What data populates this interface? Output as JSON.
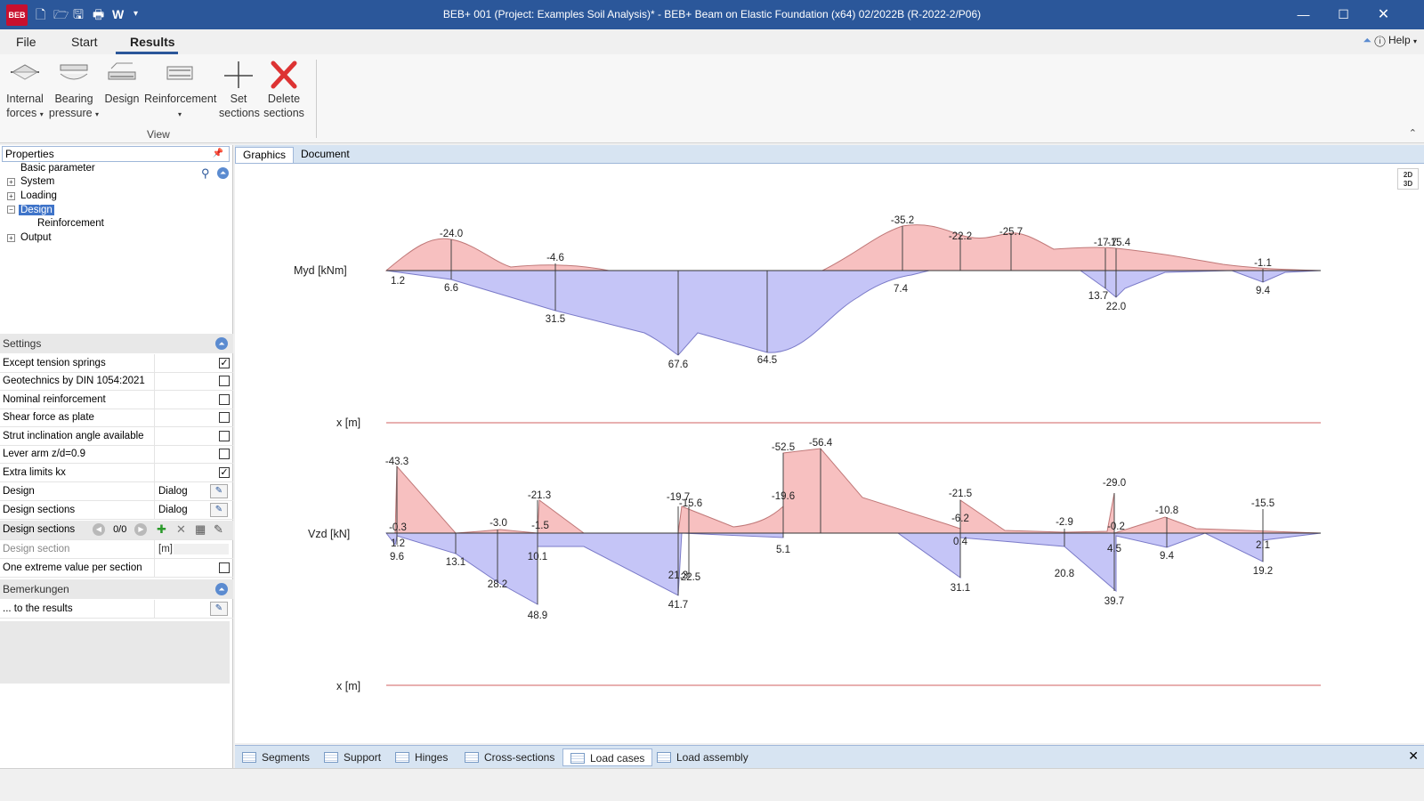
{
  "window": {
    "logo": "BEB",
    "title": "BEB+ 001 (Project: Examples Soil Analysis)* - BEB+ Beam on Elastic Foundation (x64) 02/2022B (R-2022-2/P06)",
    "qat_word": "W"
  },
  "ribbon": {
    "tabs": [
      "File",
      "Start",
      "Results"
    ],
    "help": "Help",
    "buttons": [
      {
        "line1": "Internal",
        "line2": "forces",
        "dropdown": true
      },
      {
        "line1": "Bearing",
        "line2": "pressure",
        "dropdown": true
      },
      {
        "line1": "Design",
        "line2": ""
      },
      {
        "line1": "Reinforcement",
        "line2": "",
        "dropdown": true
      },
      {
        "line1": "Set",
        "line2": "sections"
      },
      {
        "line1": "Delete",
        "line2": "sections"
      }
    ],
    "group_label": "View"
  },
  "properties": {
    "title": "Properties",
    "tree": [
      {
        "label": "Basic parameter"
      },
      {
        "label": "System"
      },
      {
        "label": "Loading"
      },
      {
        "label": "Design"
      },
      {
        "label": "Reinforcement"
      },
      {
        "label": "Output"
      }
    ]
  },
  "settings": {
    "title": "Settings",
    "rows": [
      {
        "label": "Except tension springs",
        "checked": true
      },
      {
        "label": "Geotechnics by DIN 1054:2021",
        "checked": false
      },
      {
        "label": "Nominal reinforcement",
        "checked": false
      },
      {
        "label": "Shear force as plate",
        "checked": false
      },
      {
        "label": "Strut inclination angle available",
        "checked": false
      },
      {
        "label": "Lever arm z/d=0.9",
        "checked": false
      },
      {
        "label": "Extra limits kx",
        "checked": true
      }
    ],
    "design": {
      "label": "Design",
      "value": "Dialog"
    },
    "design_sections": {
      "label": "Design sections",
      "value": "Dialog"
    },
    "design_sections_nav": {
      "label": "Design sections",
      "counter": "0/0"
    },
    "design_section": {
      "label": "Design section",
      "unit": "[m]"
    },
    "one_extreme": {
      "label": "One extreme value per section",
      "checked": false
    }
  },
  "remarks": {
    "title": "Bemerkungen",
    "row_label": "... to the results"
  },
  "main_tabs": [
    "Graphics",
    "Document"
  ],
  "view_toggle": {
    "top": "2D",
    "bottom": "3D"
  },
  "bottom_tabs": [
    "Segments",
    "Support",
    "Hinges",
    "Cross-sections",
    "Load cases",
    "Load assembly"
  ],
  "chart_data": [
    {
      "type": "area",
      "ylabel": "Myd [kNm]",
      "xlabel": "x [m]",
      "colors": {
        "negative": "#f7c0c0",
        "positive": "#c5c5f7",
        "axis_line": "#d06060"
      },
      "labels": [
        {
          "text": "-24.0",
          "pos": "above"
        },
        {
          "text": "-4.6",
          "pos": "above"
        },
        {
          "text": "-35.2",
          "pos": "above"
        },
        {
          "text": "-22.2",
          "pos": "above"
        },
        {
          "text": "-25.7",
          "pos": "above"
        },
        {
          "text": "-17.7",
          "pos": "above"
        },
        {
          "text": "-15.4",
          "pos": "above"
        },
        {
          "text": "-1.1",
          "pos": "above"
        },
        {
          "text": "1.2",
          "pos": "below"
        },
        {
          "text": "6.6",
          "pos": "below"
        },
        {
          "text": "31.5",
          "pos": "below"
        },
        {
          "text": "67.6",
          "pos": "below"
        },
        {
          "text": "64.5",
          "pos": "below"
        },
        {
          "text": "7.4",
          "pos": "below"
        },
        {
          "text": "13.7",
          "pos": "below"
        },
        {
          "text": "22.0",
          "pos": "below"
        },
        {
          "text": "9.4",
          "pos": "below"
        }
      ]
    },
    {
      "type": "area",
      "ylabel": "Vzd [kN]",
      "xlabel": "x [m]",
      "colors": {
        "negative": "#f7c0c0",
        "positive": "#c5c5f7",
        "axis_line": "#d06060"
      },
      "labels": [
        {
          "text": "-43.3",
          "pos": "above"
        },
        {
          "text": "-0.3",
          "pos": "above"
        },
        {
          "text": "-3.0",
          "pos": "above"
        },
        {
          "text": "-21.3",
          "pos": "above"
        },
        {
          "text": "-1.5",
          "pos": "above"
        },
        {
          "text": "-19.7",
          "pos": "above"
        },
        {
          "text": "-15.6",
          "pos": "above"
        },
        {
          "text": "-52.5",
          "pos": "above"
        },
        {
          "text": "-56.4",
          "pos": "above"
        },
        {
          "text": "-19.6",
          "pos": "above"
        },
        {
          "text": "-21.5",
          "pos": "above"
        },
        {
          "text": "-6.2",
          "pos": "above"
        },
        {
          "text": "-2.9",
          "pos": "above"
        },
        {
          "text": "-29.0",
          "pos": "above"
        },
        {
          "text": "-0.2",
          "pos": "above"
        },
        {
          "text": "-10.8",
          "pos": "above"
        },
        {
          "text": "-15.5",
          "pos": "above"
        },
        {
          "text": "9.6",
          "pos": "below"
        },
        {
          "text": "1.2",
          "pos": "below"
        },
        {
          "text": "13.1",
          "pos": "below"
        },
        {
          "text": "28.2",
          "pos": "below"
        },
        {
          "text": "10.1",
          "pos": "below"
        },
        {
          "text": "48.9",
          "pos": "below"
        },
        {
          "text": "41.7",
          "pos": "below"
        },
        {
          "text": "21.3",
          "pos": "below"
        },
        {
          "text": "22.5",
          "pos": "below"
        },
        {
          "text": "5.1",
          "pos": "below"
        },
        {
          "text": "0.4",
          "pos": "below"
        },
        {
          "text": "31.1",
          "pos": "below"
        },
        {
          "text": "20.8",
          "pos": "below"
        },
        {
          "text": "4.5",
          "pos": "below"
        },
        {
          "text": "39.7",
          "pos": "below"
        },
        {
          "text": "9.4",
          "pos": "below"
        },
        {
          "text": "2.1",
          "pos": "below"
        },
        {
          "text": "19.2",
          "pos": "below"
        }
      ]
    }
  ]
}
